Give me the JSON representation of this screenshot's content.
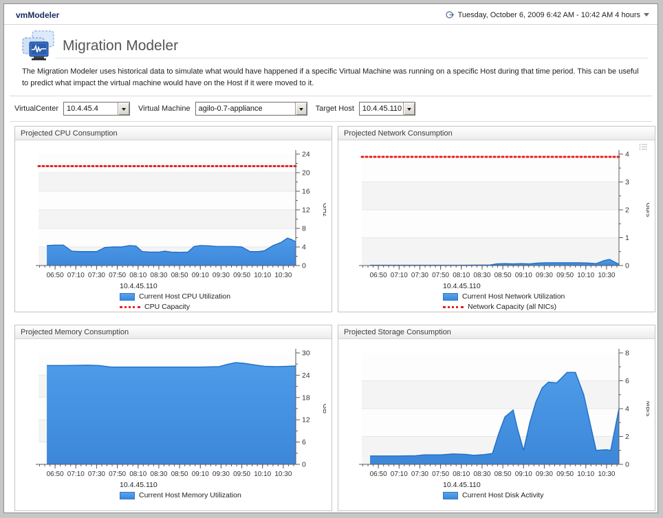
{
  "window": {
    "app_title": "vmModeler",
    "time_range": "Tuesday, October 6, 2009 6:42 AM - 10:42 AM 4 hours"
  },
  "page": {
    "title": "Migration Modeler",
    "description": "The Migration Modeler uses historical data to simulate what would have happened if a specific Virtual Machine was running on a specific Host during that time period. This can be useful to predict what impact the virtual machine would have on the Host if it were moved to it."
  },
  "filters": {
    "virtualcenter_label": "VirtualCenter",
    "virtualcenter_value": "10.4.45.4",
    "vm_label": "Virtual Machine",
    "vm_value": "agilo-0.7-appliance",
    "target_host_label": "Target Host",
    "target_host_value": "10.4.45.110"
  },
  "colors": {
    "series_fill_top": "#4E9BE9",
    "series_fill_bottom": "#3D87D9",
    "series_stroke": "#1D6FC6",
    "capacity": "#E52020",
    "band_light": "#fdfdfd",
    "band_dark": "#f4f4f4",
    "gridline": "#e7e7e7",
    "axis": "#5a5a5a"
  },
  "chart_data": [
    {
      "type": "area",
      "title": "Projected CPU Consumption",
      "ylabel": "GHz",
      "ylim": [
        0,
        24
      ],
      "y_major": 4,
      "y_minor": 2,
      "capacity": 21.4,
      "x_range": [
        "06:34",
        "10:42"
      ],
      "x_labels": [
        "06:50",
        "07:10",
        "07:30",
        "07:50",
        "08:10",
        "08:30",
        "08:50",
        "09:10",
        "09:30",
        "09:50",
        "10:10",
        "10:30"
      ],
      "legend": {
        "header": "10.4.45.110",
        "series": "Current Host CPU Utilization",
        "capacity": "CPU Capacity"
      },
      "points": [
        [
          "06:42",
          4.3
        ],
        [
          "06:50",
          4.4
        ],
        [
          "06:58",
          4.4
        ],
        [
          "07:06",
          3.1
        ],
        [
          "07:14",
          3.0
        ],
        [
          "07:22",
          3.0
        ],
        [
          "07:30",
          3.0
        ],
        [
          "07:38",
          3.9
        ],
        [
          "07:46",
          4.0
        ],
        [
          "07:54",
          4.0
        ],
        [
          "08:02",
          4.3
        ],
        [
          "08:08",
          4.2
        ],
        [
          "08:14",
          3.0
        ],
        [
          "08:22",
          2.9
        ],
        [
          "08:30",
          2.9
        ],
        [
          "08:36",
          3.1
        ],
        [
          "08:42",
          2.9
        ],
        [
          "08:50",
          2.85
        ],
        [
          "08:58",
          2.9
        ],
        [
          "09:04",
          4.1
        ],
        [
          "09:10",
          4.3
        ],
        [
          "09:18",
          4.25
        ],
        [
          "09:26",
          4.1
        ],
        [
          "09:34",
          4.1
        ],
        [
          "09:42",
          4.1
        ],
        [
          "09:50",
          4.0
        ],
        [
          "09:58",
          3.0
        ],
        [
          "10:06",
          3.0
        ],
        [
          "10:12",
          3.2
        ],
        [
          "10:20",
          4.3
        ],
        [
          "10:28",
          5.0
        ],
        [
          "10:34",
          5.9
        ],
        [
          "10:38",
          5.6
        ],
        [
          "10:42",
          5.1
        ]
      ]
    },
    {
      "type": "area",
      "title": "Projected Network Consumption",
      "ylabel": "Gb/s",
      "ylim": [
        0,
        4
      ],
      "y_major": 1,
      "y_minor": 0.5,
      "capacity": 3.9,
      "x_range": [
        "06:34",
        "10:42"
      ],
      "x_labels": [
        "06:50",
        "07:10",
        "07:30",
        "07:50",
        "08:10",
        "08:30",
        "08:50",
        "09:10",
        "09:30",
        "09:50",
        "10:10",
        "10:30"
      ],
      "legend": {
        "header": "10.4.45.110",
        "series": "Current Host Network Utilization",
        "capacity": "Network Capacity (all NICs)"
      },
      "points": [
        [
          "06:42",
          0.01
        ],
        [
          "07:30",
          0.01
        ],
        [
          "08:10",
          0.01
        ],
        [
          "08:38",
          0.02
        ],
        [
          "08:44",
          0.06
        ],
        [
          "08:52",
          0.07
        ],
        [
          "09:00",
          0.06
        ],
        [
          "09:08",
          0.07
        ],
        [
          "09:16",
          0.06
        ],
        [
          "09:24",
          0.09
        ],
        [
          "09:32",
          0.1
        ],
        [
          "09:40",
          0.1
        ],
        [
          "09:48",
          0.1
        ],
        [
          "09:56",
          0.1
        ],
        [
          "10:04",
          0.1
        ],
        [
          "10:12",
          0.09
        ],
        [
          "10:20",
          0.07
        ],
        [
          "10:28",
          0.18
        ],
        [
          "10:33",
          0.22
        ],
        [
          "10:38",
          0.12
        ],
        [
          "10:42",
          0.05
        ]
      ]
    },
    {
      "type": "area",
      "title": "Projected Memory Consumption",
      "ylabel": "GB",
      "ylim": [
        0,
        30
      ],
      "y_major": 6,
      "y_minor": 3,
      "capacity": null,
      "x_range": [
        "06:34",
        "10:42"
      ],
      "x_labels": [
        "06:50",
        "07:10",
        "07:30",
        "07:50",
        "08:10",
        "08:30",
        "08:50",
        "09:10",
        "09:30",
        "09:50",
        "10:10",
        "10:30"
      ],
      "legend": {
        "header": "10.4.45.110",
        "series": "Current Host Memory Utilization",
        "capacity": null
      },
      "points": [
        [
          "06:42",
          26.6
        ],
        [
          "07:00",
          26.6
        ],
        [
          "07:20",
          26.7
        ],
        [
          "07:32",
          26.6
        ],
        [
          "07:44",
          26.2
        ],
        [
          "08:10",
          26.2
        ],
        [
          "08:40",
          26.2
        ],
        [
          "09:10",
          26.2
        ],
        [
          "09:28",
          26.3
        ],
        [
          "09:36",
          26.9
        ],
        [
          "09:44",
          27.4
        ],
        [
          "09:52",
          27.2
        ],
        [
          "10:02",
          26.8
        ],
        [
          "10:12",
          26.4
        ],
        [
          "10:24",
          26.3
        ],
        [
          "10:34",
          26.4
        ],
        [
          "10:42",
          26.5
        ]
      ]
    },
    {
      "type": "area",
      "title": "Projected Storage Consumption",
      "ylabel": "MB/s",
      "ylim": [
        0,
        8
      ],
      "y_major": 2,
      "y_minor": 1,
      "capacity": null,
      "x_range": [
        "06:34",
        "10:42"
      ],
      "x_labels": [
        "06:50",
        "07:10",
        "07:30",
        "07:50",
        "08:10",
        "08:30",
        "08:50",
        "09:10",
        "09:30",
        "09:50",
        "10:10",
        "10:30"
      ],
      "legend": {
        "header": "10.4.45.110",
        "series": "Current Host Disk Activity",
        "capacity": null
      },
      "points": [
        [
          "06:42",
          0.6
        ],
        [
          "07:10",
          0.6
        ],
        [
          "07:26",
          0.62
        ],
        [
          "07:34",
          0.68
        ],
        [
          "07:50",
          0.68
        ],
        [
          "08:02",
          0.75
        ],
        [
          "08:14",
          0.72
        ],
        [
          "08:22",
          0.65
        ],
        [
          "08:32",
          0.7
        ],
        [
          "08:40",
          0.78
        ],
        [
          "08:46",
          2.2
        ],
        [
          "08:52",
          3.4
        ],
        [
          "09:00",
          3.9
        ],
        [
          "09:04",
          2.6
        ],
        [
          "09:10",
          1.0
        ],
        [
          "09:16",
          3.0
        ],
        [
          "09:22",
          4.5
        ],
        [
          "09:28",
          5.5
        ],
        [
          "09:34",
          5.9
        ],
        [
          "09:42",
          5.85
        ],
        [
          "09:48",
          6.3
        ],
        [
          "09:52",
          6.6
        ],
        [
          "10:00",
          6.6
        ],
        [
          "10:08",
          5.0
        ],
        [
          "10:14",
          3.0
        ],
        [
          "10:20",
          1.0
        ],
        [
          "10:30",
          1.05
        ],
        [
          "10:34",
          1.0
        ],
        [
          "10:38",
          2.5
        ],
        [
          "10:42",
          4.0
        ]
      ]
    }
  ]
}
